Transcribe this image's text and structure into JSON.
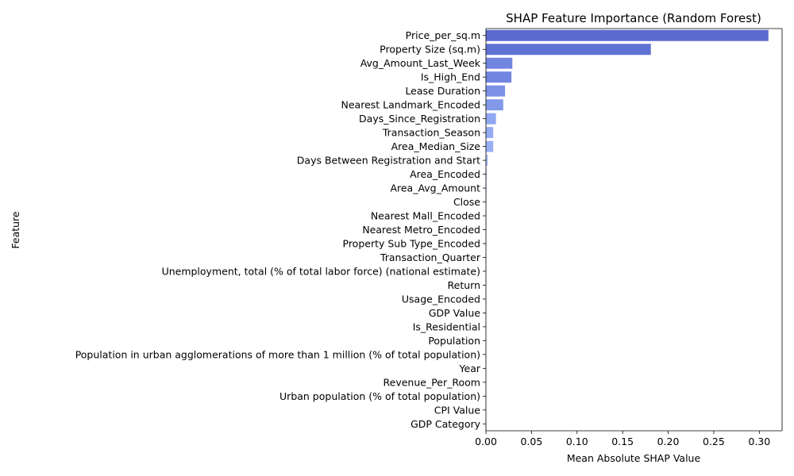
{
  "chart_data": {
    "type": "bar",
    "orientation": "horizontal",
    "title": "SHAP Feature Importance (Random Forest)",
    "xlabel": "Mean Absolute SHAP Value",
    "ylabel": "Feature",
    "xlim": [
      0,
      0.325
    ],
    "xticks": [
      "0.00",
      "0.05",
      "0.10",
      "0.15",
      "0.20",
      "0.25",
      "0.30"
    ],
    "xtick_values": [
      0,
      0.05,
      0.1,
      0.15,
      0.2,
      0.25,
      0.3
    ],
    "grid": false,
    "categories": [
      "Price_per_sq.m",
      "Property Size (sq.m)",
      "Avg_Amount_Last_Week",
      "Is_High_End",
      "Lease Duration",
      "Nearest Landmark_Encoded",
      "Days_Since_Registration",
      "Transaction_Season",
      "Area_Median_Size",
      "Days Between Registration and Start",
      "Area_Encoded",
      "Area_Avg_Amount",
      "Close",
      "Nearest Mall_Encoded",
      "Nearest Metro_Encoded",
      "Property Sub Type_Encoded",
      "Transaction_Quarter",
      "Unemployment, total (% of total labor force) (national estimate)",
      "Return",
      "Usage_Encoded",
      "GDP Value",
      "Is_Residential",
      "Population",
      "Population in urban agglomerations of more than 1 million (% of total population)",
      "Year",
      "Revenue_Per_Room",
      "Urban population (% of total population)",
      "CPI Value",
      "GDP Category"
    ],
    "values": [
      0.31,
      0.181,
      0.029,
      0.028,
      0.021,
      0.019,
      0.011,
      0.008,
      0.008,
      0.002,
      0.0008,
      0.0006,
      0.0004,
      0.0003,
      0.0003,
      0.0002,
      0.0002,
      0.0001,
      0.0001,
      0.0001,
      5e-05,
      5e-05,
      5e-05,
      3e-05,
      3e-05,
      2e-05,
      2e-05,
      1e-05,
      1e-05
    ],
    "colors": [
      "#5b6bce",
      "#5f72d4",
      "#7185e0",
      "#7285e0",
      "#7d91e7",
      "#8299ea",
      "#90a7f1",
      "#94abf3",
      "#99b0f5",
      "#a6bbf8",
      "#aec2fa",
      "#b3c6fb",
      "#b9cafc",
      "#bccdfc",
      "#c0d0fc",
      "#c3d2fc",
      "#c6d4fc",
      "#c9d6fb",
      "#ccd8fa",
      "#cfdaf9",
      "#d2dbf8",
      "#d5ddf7",
      "#d8def5",
      "#dadff3",
      "#dce0f1",
      "#dee0ef",
      "#e0e1ed",
      "#e2e2eb",
      "#e3e3e9"
    ]
  }
}
